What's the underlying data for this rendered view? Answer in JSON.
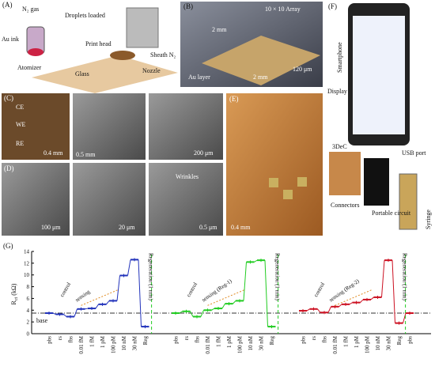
{
  "panels": {
    "A": {
      "label": "(A)",
      "n2gas": "N₂ gas",
      "droplets": "Droplets loaded",
      "auink": "Au ink",
      "atomizer": "Atomizer",
      "printhead": "Print head",
      "sheath": "Sheath N₂",
      "glass": "Glass",
      "nozzle": "Nozzle"
    },
    "B": {
      "label": "(B)",
      "array": "10 × 10 Array",
      "dim1": "2 mm",
      "dim2": "2 mm",
      "aulayer": "Au layer",
      "pitch": "120 μm"
    },
    "C": {
      "label": "(C)",
      "ce": "CE",
      "we": "WE",
      "re": "RE",
      "scale1": "0.4 mm",
      "scale2": "0.5 mm",
      "scale3": "200 μm"
    },
    "D": {
      "label": "(D)",
      "scale1": "100 μm",
      "scale2": "20 μm",
      "wrinkles": "Wrinkles",
      "scale3": "0.5 μm"
    },
    "E": {
      "label": "(E)",
      "scale": "0.4 mm"
    },
    "F": {
      "label": "(F)",
      "smartphone": "Smartphone",
      "display": "Display",
      "dec": "3DeC",
      "usb": "USB port",
      "connectors": "Connectors",
      "circuit": "Portable circuit",
      "syringe": "Syringe"
    }
  },
  "chart_data": {
    "type": "step",
    "label": "(G)",
    "ylabel": {
      "main": "R",
      "sub": "ct",
      "unit": "(kΩ)"
    },
    "ylim": [
      0,
      14
    ],
    "yticks": [
      0,
      2,
      4,
      6,
      8,
      10,
      12,
      14
    ],
    "baseline": 3.5,
    "base_label": "base",
    "regen_label": "Regeneration (1 min)",
    "series": [
      {
        "color": "#2233bb",
        "control_label": "control",
        "sensing_label": "sensing",
        "categories": [
          "pbs",
          "rs",
          "fbs",
          "0.01 fM",
          "1 fM",
          "1 pM",
          "100 pM",
          "10 nM",
          "30 nM",
          "Reg"
        ],
        "values": [
          3.5,
          3.3,
          2.9,
          4.2,
          4.3,
          5.0,
          5.6,
          9.9,
          12.6,
          1.2
        ]
      },
      {
        "color": "#22cc22",
        "control_label": "control",
        "sensing_label": "sensing (Reg-1)",
        "categories": [
          "pbs",
          "rs",
          "fbs",
          "0.01 fM",
          "1 fM",
          "1 pM",
          "100 pM",
          "10 nM",
          "30 nM",
          "Reg"
        ],
        "values": [
          3.5,
          3.8,
          2.9,
          4.0,
          4.3,
          5.1,
          5.6,
          12.2,
          12.5,
          1.2
        ]
      },
      {
        "color": "#cc1122",
        "control_label": "control",
        "sensing_label": "sensing (Reg-2)",
        "categories": [
          "pbs",
          "rs",
          "fbs",
          "0.01 fM",
          "1 fM",
          "1 pM",
          "100 pM",
          "10 nM",
          "30 nM",
          "Reg",
          "pbs"
        ],
        "values": [
          3.9,
          4.2,
          3.6,
          4.6,
          5.0,
          5.3,
          5.8,
          6.2,
          12.5,
          1.8,
          3.5
        ]
      }
    ]
  }
}
